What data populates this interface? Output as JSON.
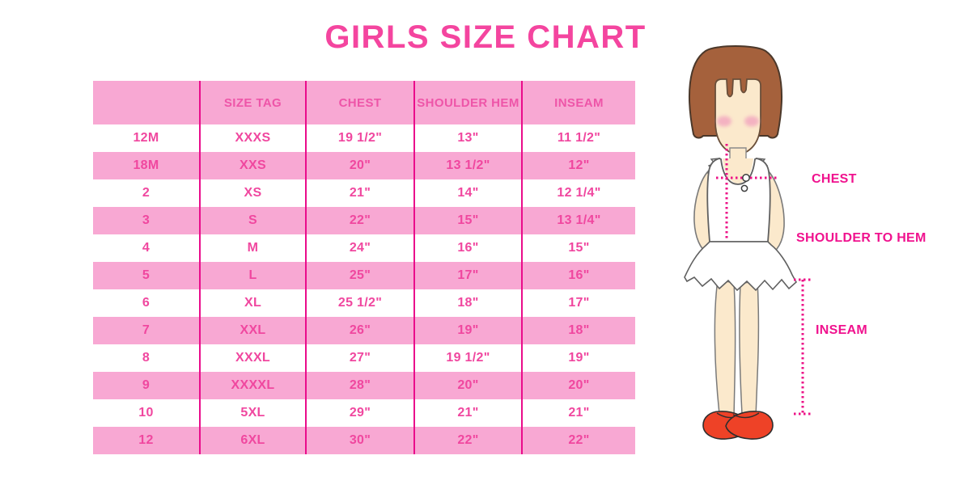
{
  "title": "GIRLS SIZE CHART",
  "chart_data": {
    "type": "table",
    "columns": [
      "",
      "SIZE TAG",
      "CHEST",
      "SHOULDER HEM",
      "INSEAM"
    ],
    "rows": [
      [
        "12M",
        "XXXS",
        "19 1/2\"",
        "13\"",
        "11 1/2\""
      ],
      [
        "18M",
        "XXS",
        "20\"",
        "13 1/2\"",
        "12\""
      ],
      [
        "2",
        "XS",
        "21\"",
        "14\"",
        "12 1/4\""
      ],
      [
        "3",
        "S",
        "22\"",
        "15\"",
        "13 1/4\""
      ],
      [
        "4",
        "M",
        "24\"",
        "16\"",
        "15\""
      ],
      [
        "5",
        "L",
        "25\"",
        "17\"",
        "16\""
      ],
      [
        "6",
        "XL",
        "25 1/2\"",
        "18\"",
        "17\""
      ],
      [
        "7",
        "XXL",
        "26\"",
        "19\"",
        "18\""
      ],
      [
        "8",
        "XXXL",
        "27\"",
        "19 1/2\"",
        "19\""
      ],
      [
        "9",
        "XXXXL",
        "28\"",
        "20\"",
        "20\""
      ],
      [
        "10",
        "5XL",
        "29\"",
        "21\"",
        "21\""
      ],
      [
        "12",
        "6XL",
        "30\"",
        "22\"",
        "22\""
      ]
    ]
  },
  "figure": {
    "chest_label": "CHEST",
    "shoulder_label": "SHOULDER TO HEM",
    "inseam_label": "INSEAM"
  },
  "colors": {
    "title_pink": "#F4459F",
    "row_pink": "#F8A8D3",
    "divider_magenta": "#EA0C8B",
    "cell_text_pink": "#F0479F",
    "label_magenta": "#F0128E",
    "hair_brown": "#A5613C",
    "skin": "#FBE9CC",
    "shoe_red": "#EE4227"
  }
}
